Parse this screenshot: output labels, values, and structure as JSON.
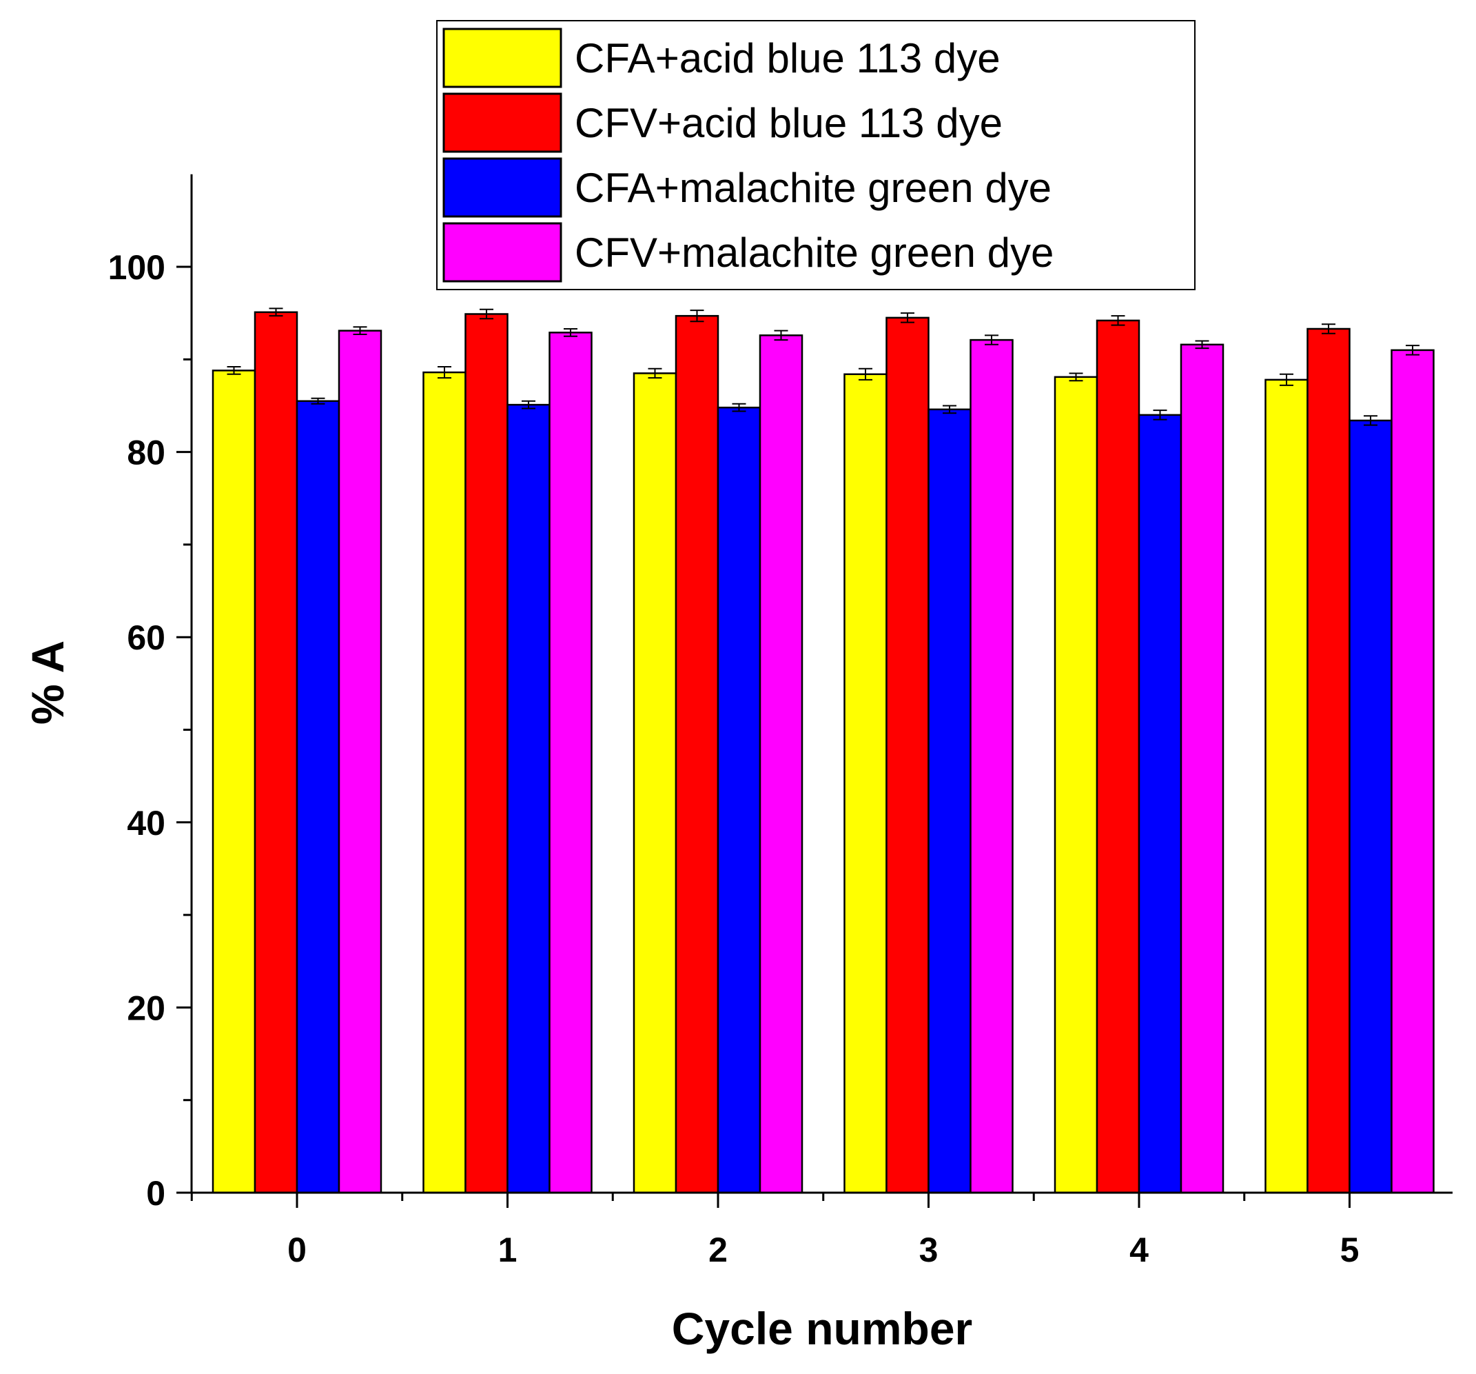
{
  "chart_data": {
    "type": "bar",
    "title": "",
    "xlabel": "Cycle number",
    "ylabel": "% A",
    "ylim": [
      0,
      110
    ],
    "yticks": [
      0,
      20,
      40,
      60,
      80,
      100
    ],
    "categories": [
      "0",
      "1",
      "2",
      "3",
      "4",
      "5"
    ],
    "legend_position": "top-right",
    "series": [
      {
        "name": "CFA+acid blue 113 dye",
        "color": "#ffff00",
        "values": [
          88.8,
          88.6,
          88.5,
          88.4,
          88.1,
          87.8
        ],
        "errors": [
          0.4,
          0.6,
          0.5,
          0.6,
          0.4,
          0.6
        ]
      },
      {
        "name": "CFV+acid blue 113 dye",
        "color": "#ff0000",
        "values": [
          95.1,
          94.9,
          94.7,
          94.5,
          94.2,
          93.3
        ],
        "errors": [
          0.4,
          0.5,
          0.6,
          0.5,
          0.5,
          0.5
        ]
      },
      {
        "name": "CFA+malachite green dye",
        "color": "#0000ff",
        "values": [
          85.5,
          85.1,
          84.8,
          84.6,
          84.0,
          83.4
        ],
        "errors": [
          0.3,
          0.4,
          0.4,
          0.4,
          0.5,
          0.5
        ]
      },
      {
        "name": "CFV+malachite green dye",
        "color": "#ff00ff",
        "values": [
          93.1,
          92.9,
          92.6,
          92.1,
          91.6,
          91.0
        ],
        "errors": [
          0.4,
          0.4,
          0.5,
          0.5,
          0.4,
          0.5
        ]
      }
    ]
  }
}
